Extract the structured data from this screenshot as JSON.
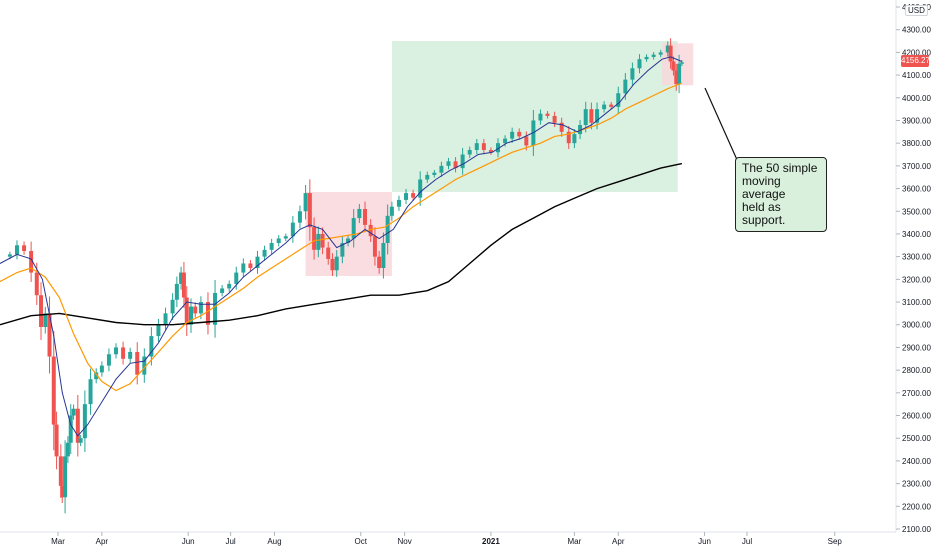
{
  "chart_data": {
    "type": "candlestick",
    "currency": "USD",
    "last_price": "4156.27",
    "ylim": [
      2100,
      4400
    ],
    "y_ticks": [
      "2100.00",
      "2200.00",
      "2300.00",
      "2400.00",
      "2500.00",
      "2600.00",
      "2700.00",
      "2800.00",
      "2900.00",
      "3000.00",
      "3100.00",
      "3200.00",
      "3300.00",
      "3400.00",
      "3500.00",
      "3600.00",
      "3700.00",
      "3800.00",
      "3900.00",
      "4000.00",
      "4100.00",
      "4200.00",
      "4300.00",
      "4400.00"
    ],
    "x_ticks": [
      {
        "label": "Mar",
        "day": 59
      },
      {
        "label": "Apr",
        "day": 90
      },
      {
        "label": "Jun",
        "day": 151
      },
      {
        "label": "Jul",
        "day": 181
      },
      {
        "label": "Aug",
        "day": 212
      },
      {
        "label": "Oct",
        "day": 273
      },
      {
        "label": "Nov",
        "day": 304
      },
      {
        "label": "2021",
        "day": 365,
        "bold": true
      },
      {
        "label": "Mar",
        "day": 424
      },
      {
        "label": "Apr",
        "day": 455
      },
      {
        "label": "Jun",
        "day": 516
      },
      {
        "label": "Jul",
        "day": 546
      },
      {
        "label": "Sep",
        "day": 608
      }
    ],
    "xlim": [
      18,
      640
    ],
    "close_series": [
      {
        "d": 18,
        "v": 3300
      },
      {
        "d": 25,
        "v": 3310
      },
      {
        "d": 30,
        "v": 3350
      },
      {
        "d": 35,
        "v": 3325
      },
      {
        "d": 40,
        "v": 3230
      },
      {
        "d": 44,
        "v": 3130
      },
      {
        "d": 47,
        "v": 2990
      },
      {
        "d": 50,
        "v": 3050
      },
      {
        "d": 53,
        "v": 2860
      },
      {
        "d": 56,
        "v": 2560
      },
      {
        "d": 58,
        "v": 2420
      },
      {
        "d": 61,
        "v": 2290
      },
      {
        "d": 62,
        "v": 2240
      },
      {
        "d": 64,
        "v": 2420
      },
      {
        "d": 66,
        "v": 2480
      },
      {
        "d": 68,
        "v": 2600
      },
      {
        "d": 70,
        "v": 2630
      },
      {
        "d": 73,
        "v": 2480
      },
      {
        "d": 75,
        "v": 2500
      },
      {
        "d": 78,
        "v": 2650
      },
      {
        "d": 82,
        "v": 2760
      },
      {
        "d": 86,
        "v": 2790
      },
      {
        "d": 90,
        "v": 2820
      },
      {
        "d": 95,
        "v": 2870
      },
      {
        "d": 100,
        "v": 2900
      },
      {
        "d": 105,
        "v": 2850
      },
      {
        "d": 110,
        "v": 2880
      },
      {
        "d": 115,
        "v": 2780
      },
      {
        "d": 120,
        "v": 2860
      },
      {
        "d": 125,
        "v": 2950
      },
      {
        "d": 130,
        "v": 3000
      },
      {
        "d": 135,
        "v": 3050
      },
      {
        "d": 140,
        "v": 3110
      },
      {
        "d": 143,
        "v": 3180
      },
      {
        "d": 146,
        "v": 3230
      },
      {
        "d": 148,
        "v": 3120
      },
      {
        "d": 150,
        "v": 3000
      },
      {
        "d": 153,
        "v": 3080
      },
      {
        "d": 156,
        "v": 3050
      },
      {
        "d": 160,
        "v": 3100
      },
      {
        "d": 165,
        "v": 3000
      },
      {
        "d": 170,
        "v": 3140
      },
      {
        "d": 175,
        "v": 3160
      },
      {
        "d": 180,
        "v": 3180
      },
      {
        "d": 185,
        "v": 3230
      },
      {
        "d": 190,
        "v": 3270
      },
      {
        "d": 195,
        "v": 3250
      },
      {
        "d": 200,
        "v": 3300
      },
      {
        "d": 205,
        "v": 3330
      },
      {
        "d": 210,
        "v": 3360
      },
      {
        "d": 215,
        "v": 3380
      },
      {
        "d": 220,
        "v": 3390
      },
      {
        "d": 225,
        "v": 3450
      },
      {
        "d": 230,
        "v": 3500
      },
      {
        "d": 234,
        "v": 3580
      },
      {
        "d": 237,
        "v": 3430
      },
      {
        "d": 240,
        "v": 3330
      },
      {
        "d": 243,
        "v": 3400
      },
      {
        "d": 246,
        "v": 3340
      },
      {
        "d": 250,
        "v": 3290
      },
      {
        "d": 253,
        "v": 3240
      },
      {
        "d": 256,
        "v": 3300
      },
      {
        "d": 260,
        "v": 3360
      },
      {
        "d": 264,
        "v": 3380
      },
      {
        "d": 268,
        "v": 3470
      },
      {
        "d": 272,
        "v": 3510
      },
      {
        "d": 276,
        "v": 3440
      },
      {
        "d": 280,
        "v": 3390
      },
      {
        "d": 283,
        "v": 3300
      },
      {
        "d": 286,
        "v": 3250
      },
      {
        "d": 289,
        "v": 3360
      },
      {
        "d": 292,
        "v": 3480
      },
      {
        "d": 295,
        "v": 3520
      },
      {
        "d": 300,
        "v": 3550
      },
      {
        "d": 305,
        "v": 3580
      },
      {
        "d": 310,
        "v": 3560
      },
      {
        "d": 315,
        "v": 3640
      },
      {
        "d": 320,
        "v": 3660
      },
      {
        "d": 325,
        "v": 3670
      },
      {
        "d": 330,
        "v": 3700
      },
      {
        "d": 335,
        "v": 3720
      },
      {
        "d": 340,
        "v": 3690
      },
      {
        "d": 345,
        "v": 3750
      },
      {
        "d": 350,
        "v": 3770
      },
      {
        "d": 355,
        "v": 3800
      },
      {
        "d": 360,
        "v": 3770
      },
      {
        "d": 365,
        "v": 3760
      },
      {
        "d": 370,
        "v": 3800
      },
      {
        "d": 375,
        "v": 3820
      },
      {
        "d": 380,
        "v": 3850
      },
      {
        "d": 385,
        "v": 3830
      },
      {
        "d": 390,
        "v": 3790
      },
      {
        "d": 395,
        "v": 3900
      },
      {
        "d": 400,
        "v": 3930
      },
      {
        "d": 405,
        "v": 3920
      },
      {
        "d": 410,
        "v": 3890
      },
      {
        "d": 415,
        "v": 3850
      },
      {
        "d": 420,
        "v": 3800
      },
      {
        "d": 424,
        "v": 3840
      },
      {
        "d": 428,
        "v": 3880
      },
      {
        "d": 432,
        "v": 3950
      },
      {
        "d": 436,
        "v": 3890
      },
      {
        "d": 440,
        "v": 3950
      },
      {
        "d": 445,
        "v": 3970
      },
      {
        "d": 450,
        "v": 3960
      },
      {
        "d": 455,
        "v": 4020
      },
      {
        "d": 460,
        "v": 4080
      },
      {
        "d": 465,
        "v": 4130
      },
      {
        "d": 470,
        "v": 4170
      },
      {
        "d": 475,
        "v": 4180
      },
      {
        "d": 480,
        "v": 4190
      },
      {
        "d": 485,
        "v": 4200
      },
      {
        "d": 490,
        "v": 4230
      },
      {
        "d": 492,
        "v": 4160
      },
      {
        "d": 494,
        "v": 4120
      },
      {
        "d": 496,
        "v": 4060
      },
      {
        "d": 498,
        "v": 4150
      },
      {
        "d": 500,
        "v": 4156
      }
    ],
    "ma_fast": [
      {
        "d": 18,
        "v": 3270
      },
      {
        "d": 30,
        "v": 3310
      },
      {
        "d": 40,
        "v": 3290
      },
      {
        "d": 48,
        "v": 3200
      },
      {
        "d": 56,
        "v": 2950
      },
      {
        "d": 62,
        "v": 2700
      },
      {
        "d": 68,
        "v": 2560
      },
      {
        "d": 73,
        "v": 2510
      },
      {
        "d": 80,
        "v": 2560
      },
      {
        "d": 90,
        "v": 2660
      },
      {
        "d": 100,
        "v": 2760
      },
      {
        "d": 110,
        "v": 2830
      },
      {
        "d": 120,
        "v": 2840
      },
      {
        "d": 130,
        "v": 2920
      },
      {
        "d": 140,
        "v": 3030
      },
      {
        "d": 150,
        "v": 3100
      },
      {
        "d": 160,
        "v": 3090
      },
      {
        "d": 170,
        "v": 3090
      },
      {
        "d": 180,
        "v": 3140
      },
      {
        "d": 190,
        "v": 3210
      },
      {
        "d": 200,
        "v": 3260
      },
      {
        "d": 210,
        "v": 3310
      },
      {
        "d": 220,
        "v": 3360
      },
      {
        "d": 230,
        "v": 3420
      },
      {
        "d": 237,
        "v": 3440
      },
      {
        "d": 246,
        "v": 3420
      },
      {
        "d": 256,
        "v": 3340
      },
      {
        "d": 266,
        "v": 3370
      },
      {
        "d": 276,
        "v": 3420
      },
      {
        "d": 286,
        "v": 3380
      },
      {
        "d": 296,
        "v": 3420
      },
      {
        "d": 306,
        "v": 3520
      },
      {
        "d": 316,
        "v": 3590
      },
      {
        "d": 326,
        "v": 3640
      },
      {
        "d": 336,
        "v": 3680
      },
      {
        "d": 346,
        "v": 3710
      },
      {
        "d": 356,
        "v": 3750
      },
      {
        "d": 366,
        "v": 3760
      },
      {
        "d": 376,
        "v": 3800
      },
      {
        "d": 386,
        "v": 3820
      },
      {
        "d": 396,
        "v": 3850
      },
      {
        "d": 406,
        "v": 3890
      },
      {
        "d": 416,
        "v": 3880
      },
      {
        "d": 426,
        "v": 3850
      },
      {
        "d": 436,
        "v": 3880
      },
      {
        "d": 446,
        "v": 3930
      },
      {
        "d": 456,
        "v": 3980
      },
      {
        "d": 466,
        "v": 4060
      },
      {
        "d": 476,
        "v": 4120
      },
      {
        "d": 486,
        "v": 4170
      },
      {
        "d": 492,
        "v": 4180
      },
      {
        "d": 500,
        "v": 4160
      }
    ],
    "ma_50": [
      {
        "d": 18,
        "v": 3190
      },
      {
        "d": 30,
        "v": 3230
      },
      {
        "d": 40,
        "v": 3250
      },
      {
        "d": 50,
        "v": 3210
      },
      {
        "d": 60,
        "v": 3120
      },
      {
        "d": 70,
        "v": 2960
      },
      {
        "d": 80,
        "v": 2830
      },
      {
        "d": 90,
        "v": 2750
      },
      {
        "d": 100,
        "v": 2710
      },
      {
        "d": 110,
        "v": 2740
      },
      {
        "d": 120,
        "v": 2810
      },
      {
        "d": 130,
        "v": 2880
      },
      {
        "d": 140,
        "v": 2950
      },
      {
        "d": 150,
        "v": 3010
      },
      {
        "d": 160,
        "v": 3040
      },
      {
        "d": 170,
        "v": 3080
      },
      {
        "d": 180,
        "v": 3120
      },
      {
        "d": 190,
        "v": 3160
      },
      {
        "d": 200,
        "v": 3210
      },
      {
        "d": 210,
        "v": 3250
      },
      {
        "d": 220,
        "v": 3290
      },
      {
        "d": 230,
        "v": 3330
      },
      {
        "d": 240,
        "v": 3370
      },
      {
        "d": 250,
        "v": 3380
      },
      {
        "d": 260,
        "v": 3390
      },
      {
        "d": 270,
        "v": 3400
      },
      {
        "d": 280,
        "v": 3420
      },
      {
        "d": 290,
        "v": 3430
      },
      {
        "d": 300,
        "v": 3470
      },
      {
        "d": 310,
        "v": 3520
      },
      {
        "d": 320,
        "v": 3560
      },
      {
        "d": 330,
        "v": 3600
      },
      {
        "d": 340,
        "v": 3640
      },
      {
        "d": 350,
        "v": 3670
      },
      {
        "d": 360,
        "v": 3700
      },
      {
        "d": 370,
        "v": 3730
      },
      {
        "d": 380,
        "v": 3760
      },
      {
        "d": 390,
        "v": 3780
      },
      {
        "d": 400,
        "v": 3800
      },
      {
        "d": 410,
        "v": 3830
      },
      {
        "d": 420,
        "v": 3840
      },
      {
        "d": 430,
        "v": 3860
      },
      {
        "d": 440,
        "v": 3880
      },
      {
        "d": 450,
        "v": 3910
      },
      {
        "d": 460,
        "v": 3950
      },
      {
        "d": 470,
        "v": 3980
      },
      {
        "d": 480,
        "v": 4010
      },
      {
        "d": 490,
        "v": 4040
      },
      {
        "d": 500,
        "v": 4065
      }
    ],
    "ma_200": [
      {
        "d": 18,
        "v": 3000
      },
      {
        "d": 40,
        "v": 3040
      },
      {
        "d": 60,
        "v": 3050
      },
      {
        "d": 80,
        "v": 3030
      },
      {
        "d": 100,
        "v": 3010
      },
      {
        "d": 120,
        "v": 3000
      },
      {
        "d": 140,
        "v": 3000
      },
      {
        "d": 160,
        "v": 3010
      },
      {
        "d": 180,
        "v": 3020
      },
      {
        "d": 200,
        "v": 3040
      },
      {
        "d": 220,
        "v": 3070
      },
      {
        "d": 240,
        "v": 3090
      },
      {
        "d": 260,
        "v": 3110
      },
      {
        "d": 280,
        "v": 3130
      },
      {
        "d": 300,
        "v": 3130
      },
      {
        "d": 320,
        "v": 3150
      },
      {
        "d": 335,
        "v": 3190
      },
      {
        "d": 350,
        "v": 3270
      },
      {
        "d": 365,
        "v": 3350
      },
      {
        "d": 380,
        "v": 3420
      },
      {
        "d": 395,
        "v": 3470
      },
      {
        "d": 410,
        "v": 3520
      },
      {
        "d": 425,
        "v": 3560
      },
      {
        "d": 440,
        "v": 3600
      },
      {
        "d": 455,
        "v": 3630
      },
      {
        "d": 470,
        "v": 3660
      },
      {
        "d": 485,
        "v": 3690
      },
      {
        "d": 500,
        "v": 3710
      }
    ],
    "zones": [
      {
        "color": "#f8d7da",
        "d0": 234,
        "d1": 295,
        "v0": 3215,
        "v1": 3585
      },
      {
        "color": "#d4eddc",
        "d0": 295,
        "d1": 497,
        "v0": 3585,
        "v1": 4250
      },
      {
        "color": "#f8d7da",
        "d0": 486,
        "d1": 508,
        "v0": 4055,
        "v1": 4240
      }
    ],
    "colors": {
      "up": "#26a69a",
      "down": "#ef5350",
      "ma_fast": "#283593",
      "ma_50": "#ff9800",
      "ma_200": "#000000"
    }
  },
  "annotation": {
    "lines": [
      "The 50 simple",
      "moving average",
      "held as support."
    ]
  }
}
